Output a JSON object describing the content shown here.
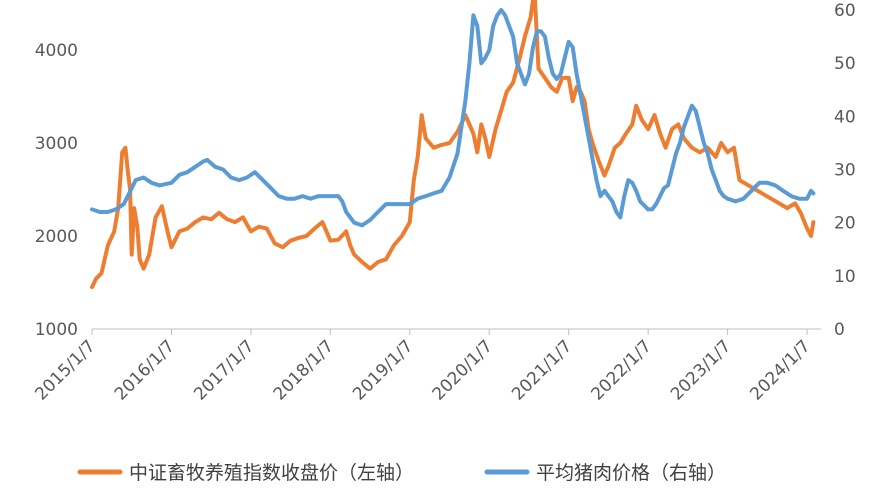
{
  "chart_data": {
    "type": "line",
    "title": "",
    "x_tick_labels": [
      "2015/1/7",
      "2016/1/7",
      "2017/1/7",
      "2018/1/7",
      "2019/1/7",
      "2020/1/7",
      "2021/1/7",
      "2022/1/7",
      "2023/1/7",
      "2024/1/7"
    ],
    "x_range": [
      2015.0,
      2024.1
    ],
    "left_axis": {
      "ticks": [
        "1000",
        "2000",
        "3000",
        "4000"
      ],
      "ylim": [
        1000,
        4300
      ]
    },
    "right_axis": {
      "ticks": [
        "0",
        "10",
        "20",
        "30",
        "40",
        "50",
        "60"
      ],
      "ylim": [
        0,
        60
      ]
    },
    "grid": false,
    "legend_position": "bottom",
    "series": [
      {
        "name": "中证畜牧养殖指数收盘价（左轴）",
        "axis": "left",
        "color": "#ED7D31",
        "points": [
          [
            2015.0,
            1450
          ],
          [
            2015.05,
            1540
          ],
          [
            2015.12,
            1600
          ],
          [
            2015.2,
            1900
          ],
          [
            2015.28,
            2050
          ],
          [
            2015.33,
            2300
          ],
          [
            2015.38,
            2900
          ],
          [
            2015.42,
            2950
          ],
          [
            2015.45,
            2700
          ],
          [
            2015.48,
            2500
          ],
          [
            2015.5,
            1800
          ],
          [
            2015.53,
            2300
          ],
          [
            2015.57,
            2100
          ],
          [
            2015.6,
            1750
          ],
          [
            2015.65,
            1650
          ],
          [
            2015.72,
            1800
          ],
          [
            2015.8,
            2200
          ],
          [
            2015.88,
            2320
          ],
          [
            2015.95,
            2050
          ],
          [
            2016.0,
            1880
          ],
          [
            2016.1,
            2050
          ],
          [
            2016.2,
            2080
          ],
          [
            2016.3,
            2150
          ],
          [
            2016.4,
            2200
          ],
          [
            2016.5,
            2180
          ],
          [
            2016.6,
            2250
          ],
          [
            2016.7,
            2180
          ],
          [
            2016.8,
            2150
          ],
          [
            2016.9,
            2200
          ],
          [
            2017.0,
            2050
          ],
          [
            2017.1,
            2100
          ],
          [
            2017.2,
            2080
          ],
          [
            2017.3,
            1920
          ],
          [
            2017.4,
            1880
          ],
          [
            2017.5,
            1950
          ],
          [
            2017.6,
            1980
          ],
          [
            2017.7,
            2000
          ],
          [
            2017.8,
            2080
          ],
          [
            2017.9,
            2150
          ],
          [
            2018.0,
            1950
          ],
          [
            2018.1,
            1960
          ],
          [
            2018.2,
            2050
          ],
          [
            2018.25,
            1900
          ],
          [
            2018.3,
            1800
          ],
          [
            2018.4,
            1720
          ],
          [
            2018.5,
            1650
          ],
          [
            2018.6,
            1720
          ],
          [
            2018.7,
            1750
          ],
          [
            2018.8,
            1900
          ],
          [
            2018.9,
            2000
          ],
          [
            2019.0,
            2150
          ],
          [
            2019.05,
            2600
          ],
          [
            2019.1,
            2850
          ],
          [
            2019.15,
            3300
          ],
          [
            2019.2,
            3050
          ],
          [
            2019.3,
            2950
          ],
          [
            2019.4,
            2980
          ],
          [
            2019.5,
            3000
          ],
          [
            2019.6,
            3120
          ],
          [
            2019.7,
            3300
          ],
          [
            2019.8,
            3100
          ],
          [
            2019.85,
            2900
          ],
          [
            2019.9,
            3200
          ],
          [
            2019.95,
            3050
          ],
          [
            2020.0,
            2850
          ],
          [
            2020.08,
            3150
          ],
          [
            2020.15,
            3350
          ],
          [
            2020.22,
            3550
          ],
          [
            2020.3,
            3650
          ],
          [
            2020.38,
            3900
          ],
          [
            2020.45,
            4150
          ],
          [
            2020.52,
            4350
          ],
          [
            2020.57,
            4650
          ],
          [
            2020.62,
            3800
          ],
          [
            2020.7,
            3700
          ],
          [
            2020.78,
            3600
          ],
          [
            2020.85,
            3550
          ],
          [
            2020.92,
            3700
          ],
          [
            2021.0,
            3700
          ],
          [
            2021.05,
            3450
          ],
          [
            2021.1,
            3600
          ],
          [
            2021.15,
            3550
          ],
          [
            2021.2,
            3450
          ],
          [
            2021.25,
            3150
          ],
          [
            2021.3,
            3000
          ],
          [
            2021.38,
            2800
          ],
          [
            2021.45,
            2650
          ],
          [
            2021.5,
            2750
          ],
          [
            2021.58,
            2950
          ],
          [
            2021.65,
            3000
          ],
          [
            2021.72,
            3100
          ],
          [
            2021.8,
            3200
          ],
          [
            2021.85,
            3400
          ],
          [
            2021.92,
            3250
          ],
          [
            2022.0,
            3150
          ],
          [
            2022.08,
            3300
          ],
          [
            2022.15,
            3100
          ],
          [
            2022.22,
            2950
          ],
          [
            2022.3,
            3150
          ],
          [
            2022.38,
            3200
          ],
          [
            2022.45,
            3050
          ],
          [
            2022.55,
            2950
          ],
          [
            2022.65,
            2900
          ],
          [
            2022.75,
            2950
          ],
          [
            2022.85,
            2850
          ],
          [
            2022.92,
            3000
          ],
          [
            2023.0,
            2900
          ],
          [
            2023.08,
            2950
          ],
          [
            2023.15,
            2600
          ],
          [
            2023.25,
            2550
          ],
          [
            2023.35,
            2500
          ],
          [
            2023.45,
            2450
          ],
          [
            2023.55,
            2400
          ],
          [
            2023.65,
            2350
          ],
          [
            2023.75,
            2300
          ],
          [
            2023.85,
            2350
          ],
          [
            2023.92,
            2250
          ],
          [
            2024.0,
            2080
          ],
          [
            2024.05,
            2000
          ],
          [
            2024.08,
            2150
          ]
        ]
      },
      {
        "name": "平均猪肉价格（右轴）",
        "axis": "right",
        "color": "#5B9BD5",
        "points": [
          [
            2015.0,
            22.5
          ],
          [
            2015.1,
            22
          ],
          [
            2015.2,
            22
          ],
          [
            2015.3,
            22.5
          ],
          [
            2015.4,
            23.5
          ],
          [
            2015.45,
            25
          ],
          [
            2015.55,
            28
          ],
          [
            2015.65,
            28.5
          ],
          [
            2015.75,
            27.5
          ],
          [
            2015.85,
            27
          ],
          [
            2016.0,
            27.5
          ],
          [
            2016.1,
            29
          ],
          [
            2016.2,
            29.5
          ],
          [
            2016.3,
            30.5
          ],
          [
            2016.4,
            31.5
          ],
          [
            2016.45,
            31.8
          ],
          [
            2016.55,
            30.5
          ],
          [
            2016.65,
            30
          ],
          [
            2016.75,
            28.5
          ],
          [
            2016.85,
            28
          ],
          [
            2016.95,
            28.5
          ],
          [
            2017.05,
            29.5
          ],
          [
            2017.15,
            28
          ],
          [
            2017.25,
            26.5
          ],
          [
            2017.35,
            25
          ],
          [
            2017.45,
            24.5
          ],
          [
            2017.55,
            24.5
          ],
          [
            2017.65,
            25
          ],
          [
            2017.75,
            24.5
          ],
          [
            2017.85,
            25
          ],
          [
            2018.0,
            25
          ],
          [
            2018.1,
            25
          ],
          [
            2018.15,
            24
          ],
          [
            2018.2,
            22
          ],
          [
            2018.3,
            20
          ],
          [
            2018.4,
            19.5
          ],
          [
            2018.5,
            20.5
          ],
          [
            2018.6,
            22
          ],
          [
            2018.7,
            23.5
          ],
          [
            2018.8,
            23.5
          ],
          [
            2018.9,
            23.5
          ],
          [
            2019.0,
            23.5
          ],
          [
            2019.1,
            24.5
          ],
          [
            2019.2,
            25
          ],
          [
            2019.3,
            25.5
          ],
          [
            2019.4,
            26
          ],
          [
            2019.5,
            28.5
          ],
          [
            2019.6,
            33
          ],
          [
            2019.7,
            43
          ],
          [
            2019.75,
            50
          ],
          [
            2019.8,
            59
          ],
          [
            2019.85,
            57
          ],
          [
            2019.9,
            50
          ],
          [
            2019.95,
            51
          ],
          [
            2020.0,
            52.5
          ],
          [
            2020.05,
            57
          ],
          [
            2020.1,
            59
          ],
          [
            2020.15,
            60
          ],
          [
            2020.2,
            59
          ],
          [
            2020.3,
            55
          ],
          [
            2020.35,
            50
          ],
          [
            2020.4,
            48
          ],
          [
            2020.45,
            46
          ],
          [
            2020.5,
            48
          ],
          [
            2020.55,
            53
          ],
          [
            2020.6,
            56
          ],
          [
            2020.65,
            56
          ],
          [
            2020.7,
            55
          ],
          [
            2020.75,
            51
          ],
          [
            2020.8,
            48
          ],
          [
            2020.85,
            47
          ],
          [
            2020.9,
            48
          ],
          [
            2020.95,
            51
          ],
          [
            2021.0,
            54
          ],
          [
            2021.05,
            53
          ],
          [
            2021.1,
            48
          ],
          [
            2021.15,
            44
          ],
          [
            2021.2,
            40
          ],
          [
            2021.25,
            36
          ],
          [
            2021.3,
            32
          ],
          [
            2021.35,
            28
          ],
          [
            2021.4,
            25
          ],
          [
            2021.45,
            26
          ],
          [
            2021.5,
            25
          ],
          [
            2021.55,
            24
          ],
          [
            2021.6,
            22
          ],
          [
            2021.65,
            21
          ],
          [
            2021.7,
            25
          ],
          [
            2021.75,
            28
          ],
          [
            2021.8,
            27.5
          ],
          [
            2021.85,
            26
          ],
          [
            2021.9,
            24
          ],
          [
            2022.0,
            22.5
          ],
          [
            2022.05,
            22.5
          ],
          [
            2022.1,
            23.5
          ],
          [
            2022.15,
            25
          ],
          [
            2022.2,
            26.5
          ],
          [
            2022.25,
            27
          ],
          [
            2022.3,
            30
          ],
          [
            2022.35,
            33
          ],
          [
            2022.4,
            35
          ],
          [
            2022.45,
            38
          ],
          [
            2022.5,
            40
          ],
          [
            2022.55,
            42
          ],
          [
            2022.6,
            41
          ],
          [
            2022.65,
            38
          ],
          [
            2022.7,
            35
          ],
          [
            2022.75,
            33
          ],
          [
            2022.8,
            30
          ],
          [
            2022.85,
            28
          ],
          [
            2022.9,
            26
          ],
          [
            2022.95,
            25
          ],
          [
            2023.0,
            24.5
          ],
          [
            2023.1,
            24
          ],
          [
            2023.2,
            24.5
          ],
          [
            2023.3,
            26
          ],
          [
            2023.4,
            27.5
          ],
          [
            2023.5,
            27.5
          ],
          [
            2023.6,
            27
          ],
          [
            2023.7,
            26
          ],
          [
            2023.8,
            25
          ],
          [
            2023.9,
            24.5
          ],
          [
            2024.0,
            24.5
          ],
          [
            2024.05,
            26
          ],
          [
            2024.08,
            25.5
          ]
        ]
      }
    ]
  }
}
